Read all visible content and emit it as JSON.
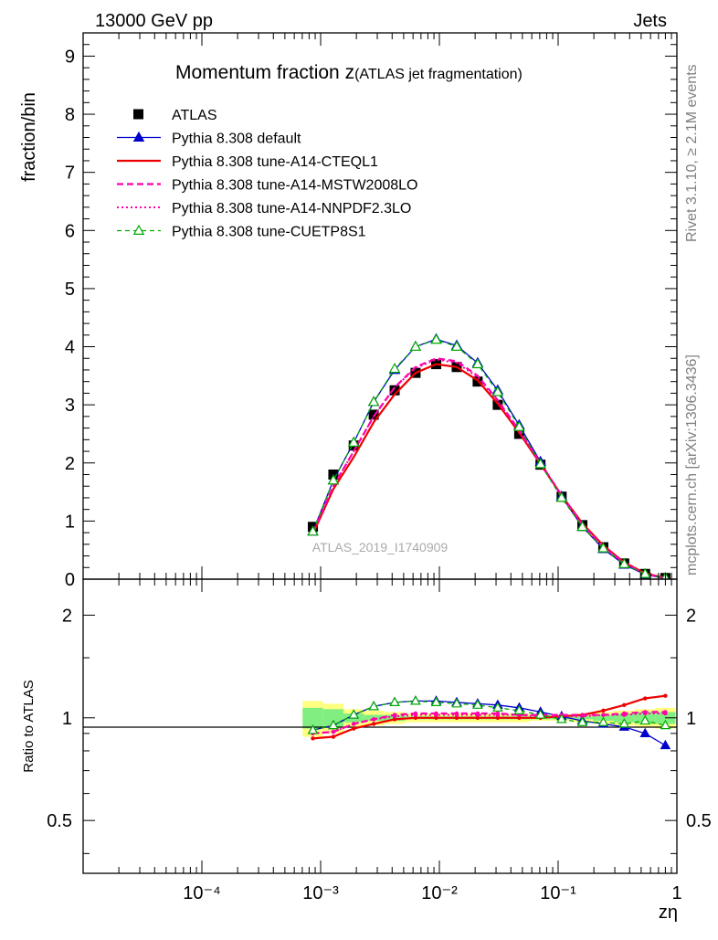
{
  "header": {
    "left": "13000 GeV pp",
    "right": "Jets"
  },
  "side_text": {
    "rivet": "Rivet 3.1.10, ≥ 2.1M events",
    "mcplots": "mcplots.cern.ch [arXiv:1306.3436]"
  },
  "chart_data": [
    {
      "type": "line",
      "title_main": "Momentum fraction z",
      "title_sub": "(ATLAS jet fragmentation)",
      "ylabel": "fraction/bin",
      "xlabel": "zη",
      "x_scale": "log",
      "xlim": [
        1e-05,
        1
      ],
      "ylim": [
        0,
        9.4
      ],
      "y_ticks": [
        "0",
        "1",
        "2",
        "3",
        "4",
        "5",
        "6",
        "7",
        "8",
        "9"
      ],
      "y_tick_values": [
        0,
        1,
        2,
        3,
        4,
        5,
        6,
        7,
        8,
        9
      ],
      "watermark": "ATLAS_2019_I1740909",
      "legend_position": "top-left",
      "x": [
        0.00086,
        0.00128,
        0.0019,
        0.0028,
        0.0042,
        0.0063,
        0.0094,
        0.014,
        0.021,
        0.031,
        0.047,
        0.071,
        0.107,
        0.16,
        0.24,
        0.36,
        0.54,
        0.8
      ],
      "series": [
        {
          "name": "ATLAS",
          "color": "#000000",
          "style": "data",
          "values": [
            0.9,
            1.8,
            2.3,
            2.83,
            3.25,
            3.55,
            3.7,
            3.65,
            3.4,
            3.0,
            2.5,
            1.97,
            1.42,
            0.93,
            0.55,
            0.27,
            0.09,
            0.02
          ]
        },
        {
          "name": "Pythia 8.308 default",
          "color": "#0000cc",
          "style": "solid-triangle",
          "values": [
            0.82,
            1.7,
            2.35,
            3.05,
            3.6,
            4.0,
            4.13,
            4.02,
            3.72,
            3.25,
            2.65,
            2.02,
            1.42,
            0.9,
            0.52,
            0.25,
            0.08,
            0.01
          ]
        },
        {
          "name": "Pythia 8.308 tune-A14-CTEQL1",
          "color": "#ee0000",
          "style": "solid",
          "values": [
            0.78,
            1.55,
            2.1,
            2.7,
            3.18,
            3.55,
            3.7,
            3.65,
            3.42,
            3.02,
            2.52,
            1.98,
            1.44,
            0.96,
            0.58,
            0.29,
            0.1,
            0.02
          ]
        },
        {
          "name": "Pythia 8.308 tune-A14-MSTW2008LO",
          "color": "#ff00aa",
          "style": "dashed",
          "values": [
            0.8,
            1.6,
            2.2,
            2.8,
            3.3,
            3.65,
            3.8,
            3.75,
            3.5,
            3.08,
            2.56,
            2.0,
            1.44,
            0.94,
            0.56,
            0.28,
            0.09,
            0.02
          ]
        },
        {
          "name": "Pythia 8.308 tune-A14-NNPDF2.3LO",
          "color": "#ff00aa",
          "style": "dotted",
          "values": [
            0.8,
            1.6,
            2.2,
            2.8,
            3.3,
            3.63,
            3.78,
            3.72,
            3.48,
            3.06,
            2.55,
            1.99,
            1.43,
            0.94,
            0.56,
            0.28,
            0.09,
            0.02
          ]
        },
        {
          "name": "Pythia 8.308 tune-CUETP8S1",
          "color": "#00aa00",
          "style": "dashed-open-triangle",
          "values": [
            0.82,
            1.7,
            2.35,
            3.05,
            3.62,
            4.0,
            4.12,
            4.0,
            3.7,
            3.22,
            2.62,
            1.98,
            1.4,
            0.9,
            0.53,
            0.26,
            0.09,
            0.02
          ]
        }
      ]
    },
    {
      "type": "line",
      "ylabel": "Ratio to ATLAS",
      "x_scale": "log",
      "y_scale": "log",
      "xlim": [
        1e-05,
        1
      ],
      "ylim": [
        0.35,
        2.55
      ],
      "x_ticks": [
        "10⁻⁴",
        "10⁻³",
        "10⁻²",
        "10⁻¹",
        "1"
      ],
      "x_tick_values": [
        0.0001,
        0.001,
        0.01,
        0.1,
        1
      ],
      "y_ticks": [
        "0.5",
        "1",
        "2"
      ],
      "y_tick_values": [
        0.5,
        1,
        2
      ],
      "band_yellow": {
        "lo": [
          0.88,
          0.9,
          0.94,
          0.95,
          0.96,
          0.97,
          0.97,
          0.97,
          0.97,
          0.97,
          0.97,
          0.98,
          0.98,
          0.97,
          0.96,
          0.95,
          0.94,
          0.93
        ],
        "hi": [
          1.12,
          1.1,
          1.06,
          1.05,
          1.04,
          1.03,
          1.03,
          1.03,
          1.03,
          1.03,
          1.03,
          1.02,
          1.02,
          1.03,
          1.04,
          1.05,
          1.06,
          1.07
        ]
      },
      "band_green": {
        "lo": [
          0.93,
          0.94,
          0.97,
          0.98,
          0.98,
          0.99,
          0.99,
          0.99,
          0.99,
          0.99,
          0.99,
          0.99,
          0.99,
          0.99,
          0.98,
          0.97,
          0.96,
          0.96
        ],
        "hi": [
          1.07,
          1.06,
          1.03,
          1.02,
          1.02,
          1.01,
          1.01,
          1.01,
          1.01,
          1.01,
          1.01,
          1.01,
          1.01,
          1.01,
          1.02,
          1.03,
          1.04,
          1.04
        ]
      },
      "series": [
        {
          "name": "Pythia 8.308 default",
          "values": [
            0.92,
            0.95,
            1.02,
            1.08,
            1.11,
            1.12,
            1.12,
            1.11,
            1.1,
            1.09,
            1.07,
            1.04,
            1.01,
            0.98,
            0.96,
            0.94,
            0.9,
            0.83
          ]
        },
        {
          "name": "Pythia 8.308 tune-A14-CTEQL1",
          "values": [
            0.87,
            0.88,
            0.93,
            0.96,
            0.99,
            1.0,
            1.0,
            1.0,
            1.0,
            1.0,
            1.0,
            1.0,
            1.01,
            1.02,
            1.05,
            1.09,
            1.14,
            1.16
          ]
        },
        {
          "name": "Pythia 8.308 tune-A14-MSTW2008LO",
          "values": [
            0.9,
            0.91,
            0.96,
            0.99,
            1.02,
            1.03,
            1.03,
            1.03,
            1.03,
            1.03,
            1.02,
            1.02,
            1.02,
            1.02,
            1.02,
            1.03,
            1.04,
            1.04
          ]
        },
        {
          "name": "Pythia 8.308 tune-A14-NNPDF2.3LO",
          "values": [
            0.9,
            0.91,
            0.96,
            0.99,
            1.01,
            1.02,
            1.02,
            1.02,
            1.02,
            1.02,
            1.02,
            1.01,
            1.01,
            1.01,
            1.02,
            1.02,
            1.03,
            1.03
          ]
        },
        {
          "name": "Pythia 8.308 tune-CUETP8S1",
          "values": [
            0.92,
            0.95,
            1.02,
            1.08,
            1.11,
            1.12,
            1.11,
            1.1,
            1.09,
            1.07,
            1.05,
            1.02,
            0.99,
            0.97,
            0.97,
            0.96,
            0.98,
            0.95
          ]
        }
      ]
    }
  ]
}
